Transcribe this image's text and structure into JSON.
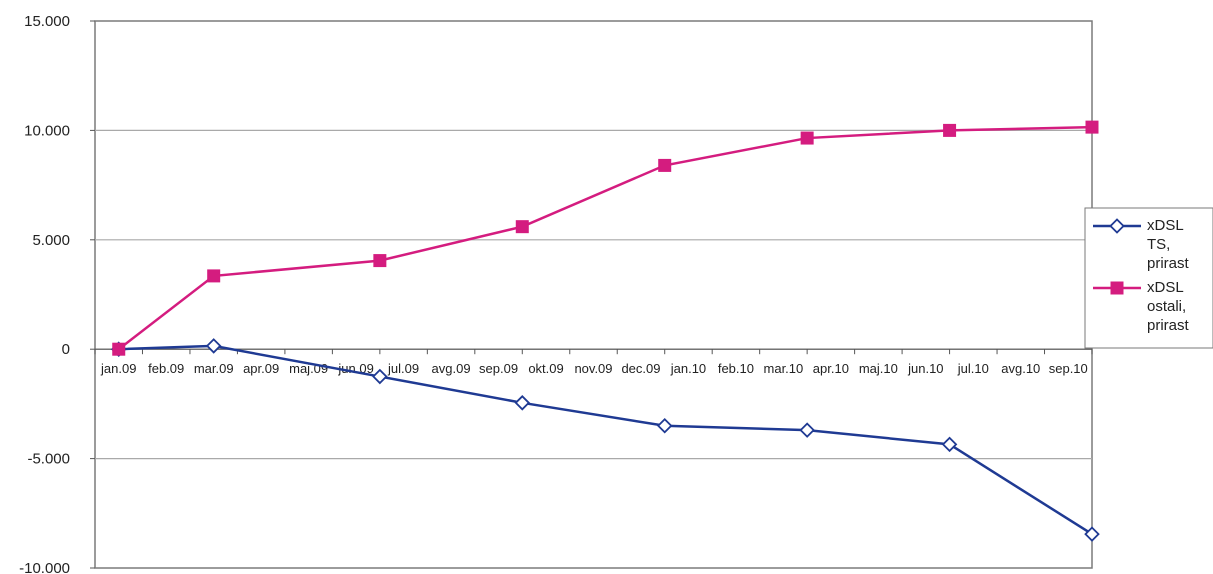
{
  "chart_data": {
    "type": "line",
    "title": "",
    "xlabel": "",
    "ylabel": "",
    "categories": [
      "jan.09",
      "feb.09",
      "mar.09",
      "apr.09",
      "maj.09",
      "jun.09",
      "jul.09",
      "avg.09",
      "sep.09",
      "okt.09",
      "nov.09",
      "dec.09",
      "jan.10",
      "feb.10",
      "mar.10",
      "apr.10",
      "maj.10",
      "jun.10",
      "jul.10",
      "avg.10",
      "sep.10"
    ],
    "ylim": [
      -10000,
      15000
    ],
    "yticks": [
      15000,
      10000,
      5000,
      0,
      -5000,
      -10000
    ],
    "ytick_labels": [
      "15.000",
      "10.000",
      "5.000",
      "0",
      "-5.000",
      "-10.000"
    ],
    "grid": true,
    "legend_position": "right",
    "series": [
      {
        "name": "xDSL TS, prirast",
        "legend_lines": [
          "xDSL",
          "TS,",
          "prirast"
        ],
        "color": "#1f3a93",
        "marker": "diamond-open",
        "points": [
          {
            "x": 0.0,
            "y": 0
          },
          {
            "x": 2.0,
            "y": 150
          },
          {
            "x": 5.5,
            "y": -1250
          },
          {
            "x": 8.5,
            "y": -2450
          },
          {
            "x": 11.5,
            "y": -3500
          },
          {
            "x": 14.5,
            "y": -3700
          },
          {
            "x": 17.5,
            "y": -4350
          },
          {
            "x": 20.5,
            "y": -8450
          }
        ]
      },
      {
        "name": "xDSL ostali, prirast",
        "legend_lines": [
          "xDSL",
          "ostali,",
          "prirast"
        ],
        "color": "#d41c7f",
        "marker": "square",
        "points": [
          {
            "x": 0.0,
            "y": 0
          },
          {
            "x": 2.0,
            "y": 3350
          },
          {
            "x": 5.5,
            "y": 4050
          },
          {
            "x": 8.5,
            "y": 5600
          },
          {
            "x": 11.5,
            "y": 8400
          },
          {
            "x": 14.5,
            "y": 9650
          },
          {
            "x": 17.5,
            "y": 10000
          },
          {
            "x": 20.5,
            "y": 10150
          }
        ]
      }
    ]
  }
}
